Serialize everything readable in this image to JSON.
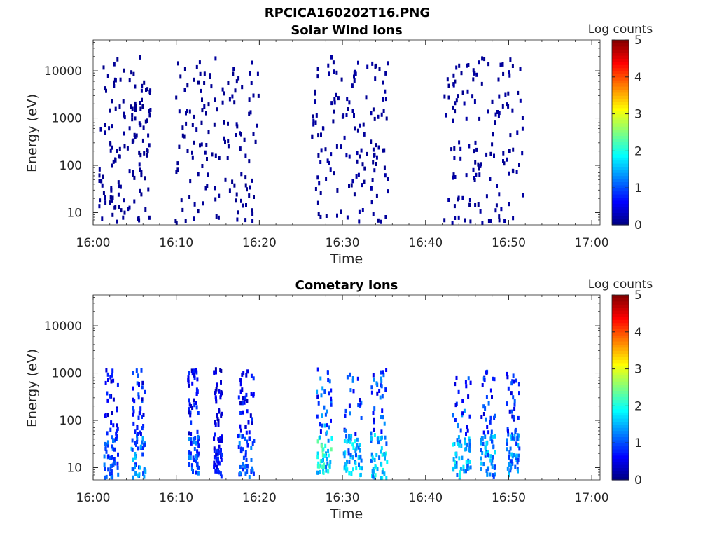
{
  "figure": {
    "title": "RPCICA160202T16.PNG"
  },
  "colormap": [
    "#000080",
    "#0000ff",
    "#0080ff",
    "#00ffff",
    "#80ff80",
    "#ffff00",
    "#ff8000",
    "#ff0000",
    "#800000"
  ],
  "chart_data": [
    {
      "type": "heatmap",
      "title": "Solar Wind Ions",
      "xlabel": "Time",
      "ylabel": "Energy (eV)",
      "xlim": [
        "16:00",
        "17:01"
      ],
      "ylim": [
        5.5,
        45000
      ],
      "yscale": "log",
      "x_ticks": [
        "16:00",
        "16:10",
        "16:20",
        "16:30",
        "16:40",
        "16:50",
        "17:00"
      ],
      "y_ticks": [
        "10",
        "100",
        "1000",
        "10000"
      ],
      "colorbar": {
        "label": "Log counts",
        "range": [
          0,
          5
        ],
        "ticks": [
          "0",
          "1",
          "2",
          "3",
          "4",
          "5"
        ]
      },
      "bursts": [
        {
          "start_min": 0.6,
          "end_min": 6.8,
          "log_count": 0.15
        },
        {
          "start_min": 9.8,
          "end_min": 19.8,
          "log_count": 0.15
        },
        {
          "start_min": 26.2,
          "end_min": 35.6,
          "log_count": 0.2
        },
        {
          "start_min": 42.1,
          "end_min": 51.6,
          "log_count": 0.2
        }
      ]
    },
    {
      "type": "heatmap",
      "title": "Cometary Ions",
      "xlabel": "Time",
      "ylabel": "Energy (eV)",
      "xlim": [
        "16:00",
        "17:01"
      ],
      "ylim": [
        5.5,
        45000
      ],
      "yscale": "log",
      "x_ticks": [
        "16:00",
        "16:10",
        "16:20",
        "16:30",
        "16:40",
        "16:50",
        "17:00"
      ],
      "y_ticks": [
        "10",
        "100",
        "1000",
        "10000"
      ],
      "colorbar": {
        "label": "Log counts",
        "range": [
          0,
          5
        ],
        "ticks": [
          "0",
          "1",
          "2",
          "3",
          "4",
          "5"
        ]
      },
      "bursts": [
        {
          "start_min": 1.2,
          "end_min": 2.9,
          "log_count": 0.9
        },
        {
          "start_min": 4.5,
          "end_min": 6.2,
          "log_count": 1.1
        },
        {
          "start_min": 11.3,
          "end_min": 12.6,
          "log_count": 0.9
        },
        {
          "start_min": 14.4,
          "end_min": 15.4,
          "log_count": 0.6
        },
        {
          "start_min": 17.3,
          "end_min": 19.3,
          "log_count": 0.9
        },
        {
          "start_min": 26.8,
          "end_min": 28.6,
          "log_count": 1.6
        },
        {
          "start_min": 30.0,
          "end_min": 32.2,
          "log_count": 1.3
        },
        {
          "start_min": 33.3,
          "end_min": 35.3,
          "log_count": 1.4
        },
        {
          "start_min": 43.2,
          "end_min": 45.3,
          "log_count": 1.4
        },
        {
          "start_min": 46.5,
          "end_min": 48.3,
          "log_count": 1.2
        },
        {
          "start_min": 49.6,
          "end_min": 51.2,
          "log_count": 1.1
        }
      ]
    }
  ]
}
